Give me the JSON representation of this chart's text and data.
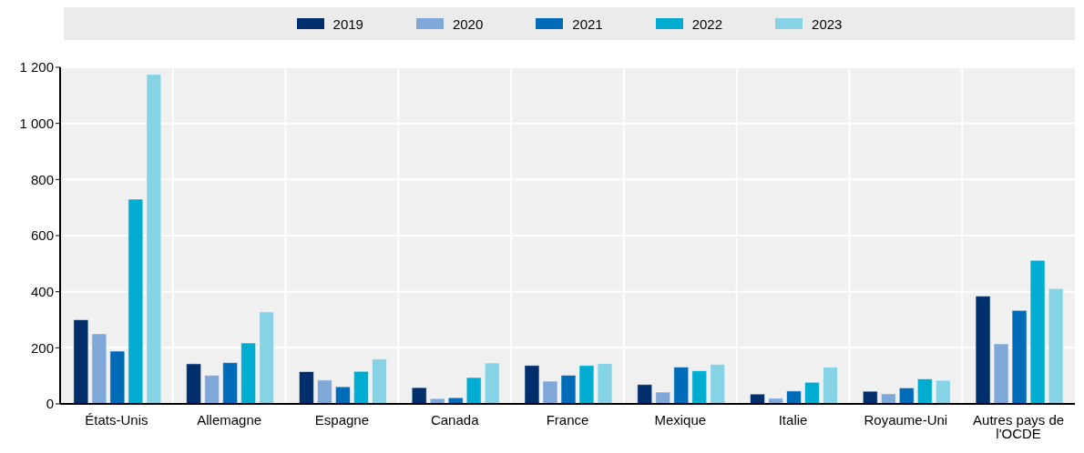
{
  "chart_data": {
    "type": "bar",
    "categories": [
      "États-Unis",
      "Allemagne",
      "Espagne",
      "Canada",
      "France",
      "Mexique",
      "Italie",
      "Royaume-Uni",
      "Autres pays de l'OCDE"
    ],
    "series": [
      {
        "name": "2019",
        "color": "#002f6c",
        "values": [
          300,
          143,
          115,
          58,
          137,
          69,
          35,
          45,
          384
        ]
      },
      {
        "name": "2020",
        "color": "#7fa8d9",
        "values": [
          250,
          102,
          85,
          19,
          81,
          42,
          20,
          36,
          214
        ]
      },
      {
        "name": "2021",
        "color": "#006bb6",
        "values": [
          188,
          147,
          61,
          22,
          102,
          131,
          46,
          57,
          333
        ]
      },
      {
        "name": "2022",
        "color": "#00acd0",
        "values": [
          730,
          217,
          116,
          94,
          137,
          118,
          77,
          89,
          512
        ]
      },
      {
        "name": "2023",
        "color": "#86d3e6",
        "values": [
          1175,
          328,
          160,
          146,
          144,
          141,
          131,
          84,
          411
        ]
      }
    ],
    "ylim": [
      0,
      1200
    ],
    "yticks": [
      0,
      200,
      400,
      600,
      800,
      {
        "value": 1000,
        "label": "1 000"
      },
      {
        "value": 1200,
        "label": "1 200"
      }
    ],
    "grid": true,
    "legend": "top"
  }
}
